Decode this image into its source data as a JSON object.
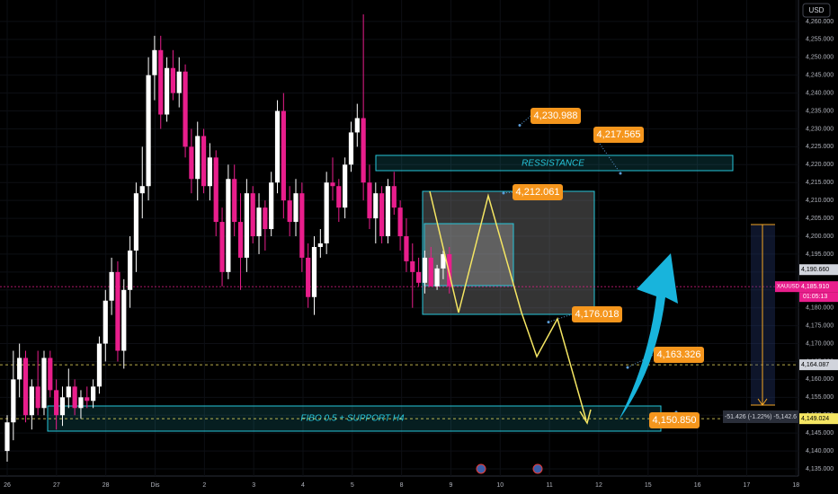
{
  "chart_data": {
    "type": "candlestick",
    "symbol": "XAUUSD",
    "currency": "USD",
    "countdown": "01:05:13",
    "colors": {
      "up": "#ffffff",
      "down": "#e91e8c",
      "zone": "#26c6da",
      "label": "#f5961d",
      "last_price": "#e91e8c"
    },
    "ylim": [
      4133,
      4266
    ],
    "yticks": [
      {
        "value": 4135,
        "label": "4,135.000"
      },
      {
        "value": 4140,
        "label": "4,140.000"
      },
      {
        "value": 4145,
        "label": "4,145.000"
      },
      {
        "value": 4150,
        "label": "4,150.000"
      },
      {
        "value": 4155,
        "label": "4,155.000"
      },
      {
        "value": 4160,
        "label": "4,160.000"
      },
      {
        "value": 4165,
        "label": "4,165.000"
      },
      {
        "value": 4170,
        "label": "4,170.000"
      },
      {
        "value": 4175,
        "label": "4,175.000"
      },
      {
        "value": 4180,
        "label": "4,180.000"
      },
      {
        "value": 4185,
        "label": "4,185.000"
      },
      {
        "value": 4190,
        "label": "4,190.000"
      },
      {
        "value": 4195,
        "label": "4,195.000"
      },
      {
        "value": 4200,
        "label": "4,200.000"
      },
      {
        "value": 4205,
        "label": "4,205.000"
      },
      {
        "value": 4210,
        "label": "4,210.000"
      },
      {
        "value": 4215,
        "label": "4,215.000"
      },
      {
        "value": 4220,
        "label": "4,220.000"
      },
      {
        "value": 4225,
        "label": "4,225.000"
      },
      {
        "value": 4230,
        "label": "4,230.000"
      },
      {
        "value": 4235,
        "label": "4,235.000"
      },
      {
        "value": 4240,
        "label": "4,240.000"
      },
      {
        "value": 4245,
        "label": "4,245.000"
      },
      {
        "value": 4250,
        "label": "4,250.000"
      },
      {
        "value": 4255,
        "label": "4,255.000"
      },
      {
        "value": 4260,
        "label": "4,260.000"
      }
    ],
    "xlim": [
      -1.17,
      128.4
    ],
    "xticks": [
      {
        "value": 0,
        "label": "26"
      },
      {
        "value": 8,
        "label": "27"
      },
      {
        "value": 16,
        "label": "28"
      },
      {
        "value": 24,
        "label": "Dis"
      },
      {
        "value": 32,
        "label": "2"
      },
      {
        "value": 40,
        "label": "3"
      },
      {
        "value": 48,
        "label": "4"
      },
      {
        "value": 56,
        "label": "5"
      },
      {
        "value": 64,
        "label": "8"
      },
      {
        "value": 72,
        "label": "9"
      },
      {
        "value": 80,
        "label": "10"
      },
      {
        "value": 88,
        "label": "11"
      },
      {
        "value": 96,
        "label": "12"
      },
      {
        "value": 104,
        "label": "15"
      },
      {
        "value": 112,
        "label": "16"
      },
      {
        "value": 120,
        "label": "17"
      },
      {
        "value": 128,
        "label": "18"
      }
    ],
    "candles": [
      [
        4140,
        4150,
        4137,
        4148
      ],
      [
        4148,
        4168,
        4143,
        4160
      ],
      [
        4160,
        4170,
        4155,
        4166
      ],
      [
        4166,
        4168,
        4148,
        4150
      ],
      [
        4150,
        4160,
        4146,
        4158
      ],
      [
        4158,
        4168,
        4150,
        4152
      ],
      [
        4152,
        4168,
        4150,
        4166
      ],
      [
        4166,
        4168,
        4155,
        4157
      ],
      [
        4157,
        4160,
        4146,
        4150
      ],
      [
        4150,
        4158,
        4147,
        4155
      ],
      [
        4155,
        4163,
        4152,
        4158
      ],
      [
        4158,
        4160,
        4150,
        4152
      ],
      [
        4152,
        4157,
        4149,
        4155
      ],
      [
        4155,
        4158,
        4152,
        4154
      ],
      [
        4154,
        4160,
        4152,
        4158
      ],
      [
        4158,
        4172,
        4156,
        4170
      ],
      [
        4170,
        4185,
        4165,
        4182
      ],
      [
        4182,
        4194,
        4178,
        4190
      ],
      [
        4190,
        4193,
        4165,
        4168
      ],
      [
        4168,
        4188,
        4163,
        4185
      ],
      [
        4185,
        4200,
        4180,
        4196
      ],
      [
        4196,
        4215,
        4190,
        4212
      ],
      [
        4212,
        4225,
        4205,
        4214
      ],
      [
        4214,
        4250,
        4210,
        4245
      ],
      [
        4245,
        4256,
        4238,
        4252
      ],
      [
        4252,
        4256,
        4230,
        4234
      ],
      [
        4234,
        4250,
        4232,
        4247
      ],
      [
        4247,
        4252,
        4238,
        4240
      ],
      [
        4240,
        4250,
        4236,
        4246
      ],
      [
        4246,
        4248,
        4222,
        4225
      ],
      [
        4225,
        4230,
        4212,
        4216
      ],
      [
        4216,
        4232,
        4210,
        4228
      ],
      [
        4228,
        4230,
        4212,
        4214
      ],
      [
        4214,
        4226,
        4210,
        4222
      ],
      [
        4222,
        4224,
        4200,
        4204
      ],
      [
        4204,
        4208,
        4186,
        4190
      ],
      [
        4190,
        4220,
        4188,
        4216
      ],
      [
        4216,
        4220,
        4200,
        4204
      ],
      [
        4204,
        4212,
        4185,
        4194
      ],
      [
        4194,
        4216,
        4190,
        4212
      ],
      [
        4212,
        4214,
        4198,
        4200
      ],
      [
        4200,
        4212,
        4195,
        4208
      ],
      [
        4208,
        4210,
        4196,
        4202
      ],
      [
        4202,
        4218,
        4200,
        4215
      ],
      [
        4215,
        4238,
        4212,
        4235
      ],
      [
        4235,
        4240,
        4205,
        4210
      ],
      [
        4210,
        4214,
        4200,
        4204
      ],
      [
        4204,
        4216,
        4200,
        4212
      ],
      [
        4212,
        4215,
        4190,
        4194
      ],
      [
        4194,
        4198,
        4180,
        4183
      ],
      [
        4183,
        4200,
        4178,
        4197
      ],
      [
        4197,
        4202,
        4194,
        4198
      ],
      [
        4198,
        4218,
        4195,
        4215
      ],
      [
        4215,
        4222,
        4210,
        4214
      ],
      [
        4214,
        4216,
        4204,
        4208
      ],
      [
        4208,
        4222,
        4205,
        4220
      ],
      [
        4220,
        4232,
        4218,
        4229
      ],
      [
        4229,
        4237,
        4225,
        4233
      ],
      [
        4233,
        4262,
        4210,
        4215
      ],
      [
        4215,
        4220,
        4202,
        4205
      ],
      [
        4205,
        4215,
        4198,
        4212
      ],
      [
        4212,
        4214,
        4198,
        4200
      ],
      [
        4200,
        4216,
        4198,
        4214
      ],
      [
        4214,
        4218,
        4206,
        4208
      ],
      [
        4208,
        4210,
        4196,
        4200
      ],
      [
        4200,
        4205,
        4190,
        4193
      ],
      [
        4193,
        4198,
        4180,
        4190
      ],
      [
        4190,
        4194,
        4186,
        4187
      ],
      [
        4187,
        4196,
        4184,
        4194
      ],
      [
        4194,
        4197,
        4186,
        4186
      ],
      [
        4186,
        4192,
        4185,
        4191
      ],
      [
        4191,
        4196,
        4188,
        4195
      ],
      [
        4195,
        4197,
        4184,
        4186
      ]
    ],
    "zones": [
      "RESSISTANCE",
      "FIBO 0.5 + SUPPORT H4"
    ],
    "annotations": [
      {
        "value": 4230.988,
        "label": "4,230.988"
      },
      {
        "value": 4217.565,
        "label": "4,217.565"
      },
      {
        "value": 4212.061,
        "label": "4,212.061"
      },
      {
        "value": 4176.018,
        "label": "4,176.018"
      },
      {
        "value": 4163.326,
        "label": "4,163.326"
      },
      {
        "value": 4150.85,
        "label": "4,150.850"
      }
    ],
    "price_lines": [
      {
        "value": 4185.91,
        "label": "4,185.910"
      },
      {
        "value": 4190.66,
        "label": "4,190.660"
      },
      {
        "value": 4164.087,
        "label": "4,164.087"
      },
      {
        "value": 4149.024,
        "label": "4,149.024"
      }
    ],
    "measure": "-51.426 (-1.22%) -5,142.6"
  }
}
